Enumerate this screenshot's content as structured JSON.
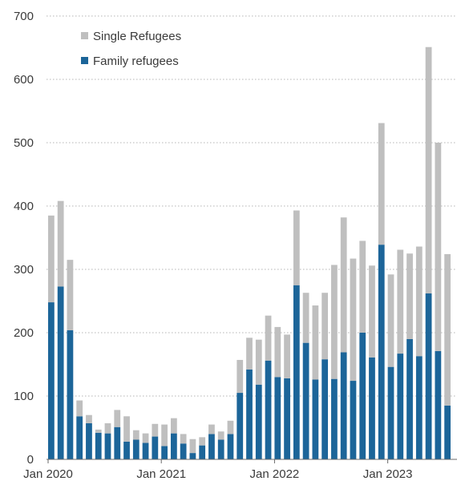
{
  "chart_data": {
    "type": "bar",
    "stacked": true,
    "title": "",
    "xlabel": "",
    "ylabel": "",
    "ylim": [
      0,
      700
    ],
    "yticks": [
      0,
      100,
      200,
      300,
      400,
      500,
      600,
      700
    ],
    "grid": "horizontal dotted",
    "legend_position": "top-left",
    "x_tick_labels": [
      {
        "index": 0,
        "label": "Jan 2020"
      },
      {
        "index": 12,
        "label": "Jan 2021"
      },
      {
        "index": 24,
        "label": "Jan 2022"
      },
      {
        "index": 36,
        "label": "Jan 2023"
      }
    ],
    "categories": [
      "2020-01",
      "2020-02",
      "2020-03",
      "2020-04",
      "2020-05",
      "2020-06",
      "2020-07",
      "2020-08",
      "2020-09",
      "2020-10",
      "2020-11",
      "2020-12",
      "2021-01",
      "2021-02",
      "2021-03",
      "2021-04",
      "2021-05",
      "2021-06",
      "2021-07",
      "2021-08",
      "2021-09",
      "2021-10",
      "2021-11",
      "2021-12",
      "2022-01",
      "2022-02",
      "2022-03",
      "2022-04",
      "2022-05",
      "2022-06",
      "2022-07",
      "2022-08",
      "2022-09",
      "2022-10",
      "2022-11",
      "2022-12",
      "2023-01",
      "2023-02",
      "2023-03",
      "2023-04",
      "2023-05",
      "2023-06",
      "2023-07"
    ],
    "series": [
      {
        "name": "Family refugees",
        "color": "#1c6599",
        "values": [
          248,
          273,
          204,
          68,
          57,
          42,
          41,
          51,
          28,
          31,
          26,
          36,
          21,
          41,
          25,
          10,
          22,
          40,
          31,
          40,
          105,
          142,
          118,
          156,
          130,
          128,
          275,
          184,
          126,
          158,
          127,
          169,
          124,
          200,
          161,
          339,
          146,
          167,
          190,
          163,
          262,
          171,
          85
        ]
      },
      {
        "name": "Single Refugees",
        "color": "#bfbfbf",
        "values": [
          137,
          135,
          111,
          25,
          13,
          5,
          16,
          27,
          40,
          15,
          15,
          20,
          34,
          24,
          15,
          22,
          13,
          15,
          13,
          21,
          52,
          50,
          71,
          71,
          79,
          69,
          118,
          79,
          117,
          105,
          180,
          213,
          193,
          145,
          145,
          192,
          146,
          164,
          135,
          173,
          389,
          329,
          239
        ]
      }
    ]
  }
}
